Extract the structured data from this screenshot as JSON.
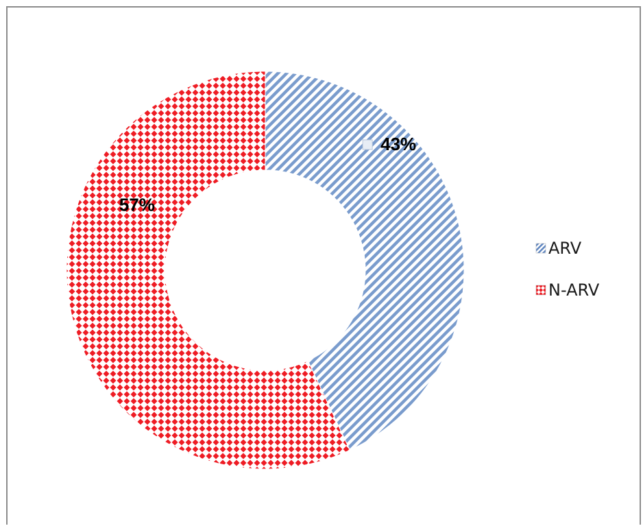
{
  "chart_data": {
    "type": "pie",
    "donut": true,
    "categories": [
      "ARV",
      "N-ARV"
    ],
    "values": [
      43,
      57
    ],
    "data_labels": [
      "43%",
      "57%"
    ],
    "colors": {
      "ARV": "#7a9ccd",
      "N-ARV": "#ee1c24"
    },
    "patterns": {
      "ARV": "diagonal-stripes",
      "N-ARV": "diamond-checker"
    },
    "legend": {
      "position": "right",
      "entries": [
        "ARV",
        "N-ARV"
      ]
    },
    "title": "",
    "start_angle_degrees": 0,
    "direction": "clockwise"
  }
}
